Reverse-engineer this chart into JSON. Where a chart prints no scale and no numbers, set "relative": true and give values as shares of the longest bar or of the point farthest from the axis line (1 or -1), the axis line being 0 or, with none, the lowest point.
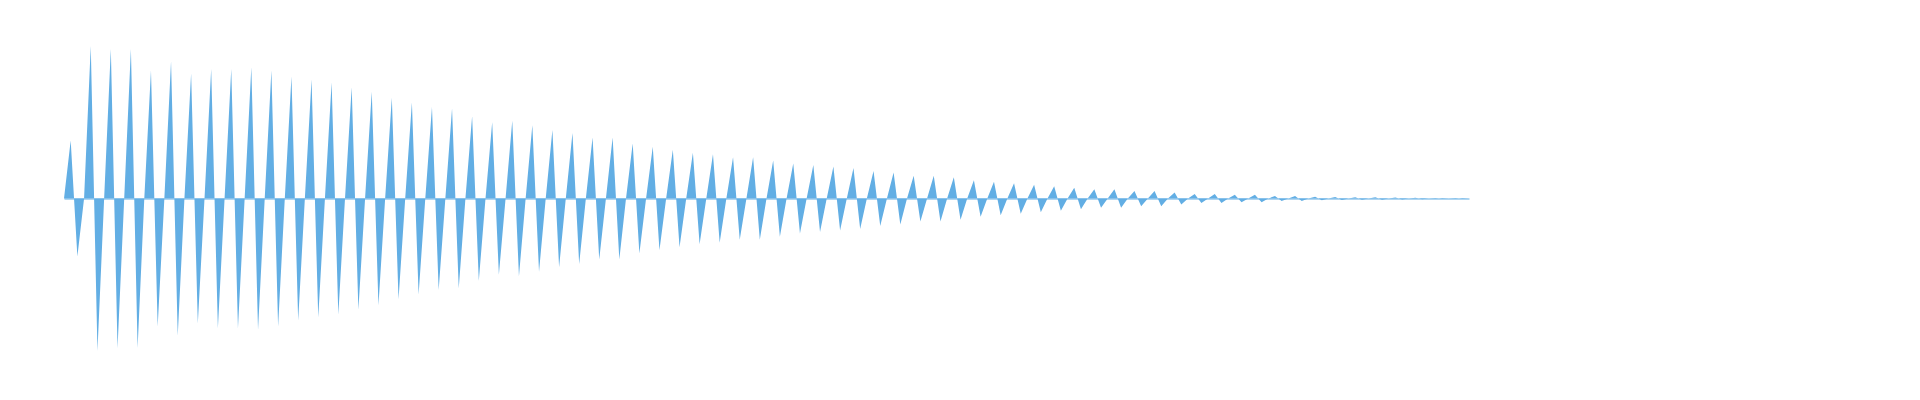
{
  "chart_data": {
    "type": "area",
    "relative": true,
    "categories": [
      null,
      null,
      null,
      null,
      null,
      null,
      null,
      null,
      null,
      null,
      null,
      null,
      null,
      null,
      null,
      null,
      null,
      null,
      null,
      null,
      null,
      null,
      null,
      null,
      null,
      null,
      null,
      null,
      null,
      null,
      null,
      null,
      null,
      null,
      null,
      null,
      null,
      null,
      null,
      null,
      null,
      null,
      null,
      null,
      null,
      null,
      null,
      null,
      null,
      null,
      null,
      null,
      null,
      null,
      null,
      null,
      null,
      null,
      null,
      null,
      null,
      null,
      null,
      null,
      null,
      null,
      null,
      null,
      null,
      null,
      null,
      null,
      null,
      null,
      null,
      null,
      null,
      null,
      null,
      null,
      null,
      null,
      null,
      null,
      null,
      null,
      null,
      null,
      null,
      null,
      null,
      null,
      null,
      null,
      null,
      null,
      null,
      null,
      null,
      null,
      null,
      null,
      null,
      null,
      null,
      null,
      null,
      null,
      null,
      null,
      null,
      null,
      null,
      null,
      null,
      null,
      null,
      null,
      null,
      null,
      null,
      null,
      null,
      null,
      null,
      null,
      null,
      null,
      null,
      null,
      null,
      null,
      null,
      null,
      null,
      null,
      null,
      null,
      null,
      null,
      null,
      null,
      null,
      null,
      null,
      null,
      null,
      null,
      null,
      null,
      null,
      null,
      null,
      null,
      null,
      null,
      null,
      null,
      null,
      null,
      null,
      null,
      null,
      null,
      null,
      null,
      null,
      null,
      null,
      null,
      null,
      null,
      null,
      null,
      null,
      null,
      null,
      null,
      null,
      null,
      null,
      null,
      null,
      null,
      null,
      null,
      null,
      null,
      null,
      null,
      null,
      null,
      null,
      null,
      null,
      null,
      null,
      null,
      null,
      null,
      null,
      null,
      null,
      null,
      null,
      null,
      null,
      null,
      null,
      null,
      null
    ],
    "series": [
      {
        "color": "#62aee4",
        "values": [
          0,
          0.38,
          -0.38,
          0,
          1.0,
          -1.0,
          0,
          0.98,
          -0.98,
          0,
          0.98,
          -0.98,
          0,
          0.84,
          -0.84,
          0,
          0.9,
          -0.9,
          0,
          0.82,
          -0.82,
          0,
          0.85,
          -0.85,
          0,
          0.85,
          -0.85,
          0,
          0.86,
          -0.86,
          0,
          0.84,
          -0.84,
          0,
          0.8,
          -0.8,
          0,
          0.78,
          -0.78,
          0,
          0.76,
          -0.76,
          0,
          0.73,
          -0.73,
          0,
          0.7,
          -0.7,
          0,
          0.66,
          -0.66,
          0,
          0.63,
          -0.63,
          0,
          0.6,
          -0.6,
          0,
          0.59,
          -0.59,
          0,
          0.54,
          -0.54,
          0,
          0.5,
          -0.5,
          0,
          0.51,
          -0.51,
          0,
          0.48,
          -0.48,
          0,
          0.45,
          -0.45,
          0,
          0.43,
          -0.43,
          0,
          0.4,
          -0.4,
          0,
          0.4,
          -0.4,
          0,
          0.36,
          -0.36,
          0,
          0.34,
          -0.34,
          0,
          0.32,
          -0.32,
          0,
          0.3,
          -0.3,
          0,
          0.29,
          -0.29,
          0,
          0.27,
          -0.27,
          0,
          0.27,
          -0.27,
          0,
          0.25,
          -0.25,
          0,
          0.23,
          -0.23,
          0,
          0.22,
          -0.22,
          0,
          0.21,
          -0.21,
          0,
          0.2,
          -0.2,
          0,
          0.18,
          -0.18,
          0,
          0.17,
          -0.17,
          0,
          0.15,
          -0.15,
          0,
          0.15,
          -0.15,
          0,
          0.14,
          -0.14,
          0,
          0.12,
          -0.12,
          0,
          0.11,
          -0.11,
          0,
          0.1,
          -0.1,
          0,
          0.09,
          -0.09,
          0,
          0.08,
          -0.08,
          0,
          0.07,
          -0.07,
          0,
          0.06,
          -0.06,
          0,
          0.06,
          -0.06,
          0,
          0.05,
          -0.05,
          0,
          0.05,
          -0.05,
          0,
          0.04,
          -0.04,
          0,
          0.03,
          -0.03,
          0,
          0.03,
          -0.03,
          0,
          0.025,
          -0.025,
          0,
          0.025,
          -0.025,
          0,
          0.016,
          -0.016,
          0,
          0.016,
          -0.016,
          0,
          0.012,
          -0.012,
          0,
          0.01,
          -0.01,
          0,
          0.008,
          -0.008,
          0,
          0.008,
          -0.008,
          0,
          0.006,
          -0.006,
          0,
          0.005,
          -0.005,
          0,
          0.004,
          -0.004,
          0,
          0.003,
          -0.003,
          0
        ]
      }
    ]
  }
}
